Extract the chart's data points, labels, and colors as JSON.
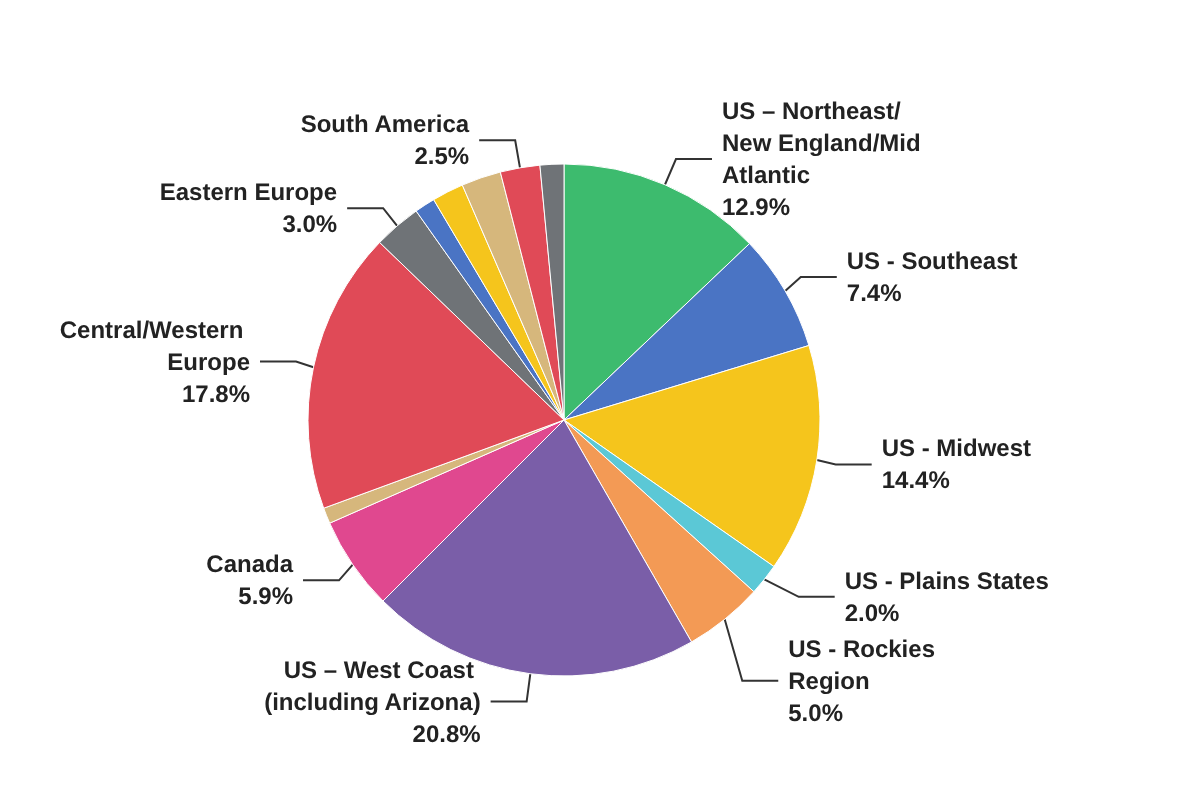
{
  "chart_data": {
    "type": "pie",
    "categories": [
      "US – Northeast/New England/Mid Atlantic",
      "US - Southeast",
      "US - Midwest",
      "US - Plains States",
      "US - Rockies Region",
      "US – West Coast (including Arizona)",
      "Canada",
      null,
      "Central/Western Europe",
      "Eastern Europe",
      null,
      null,
      null,
      "South America",
      null
    ],
    "values": [
      12.9,
      7.4,
      14.4,
      2.0,
      5.0,
      20.8,
      5.9,
      1.0,
      17.8,
      3.0,
      1.3,
      2.0,
      2.5,
      2.5,
      1.5
    ],
    "value_labels": [
      "12.9%",
      "7.4%",
      "14.4%",
      "2.0%",
      "5.0%",
      "20.8%",
      "5.9%",
      null,
      "17.8%",
      "3.0%",
      null,
      null,
      null,
      "2.5%",
      null
    ],
    "colors": [
      "#3dbb6e",
      "#4a74c4",
      "#f5c51c",
      "#5bc8d6",
      "#f39a55",
      "#7a5ea8",
      "#e0488f",
      "#d6b77c",
      "#e04a57",
      "#6f7377",
      "#4a74c4",
      "#f5c51c",
      "#d6b77c",
      "#e04a57",
      "#6f7377"
    ],
    "legend": false
  }
}
